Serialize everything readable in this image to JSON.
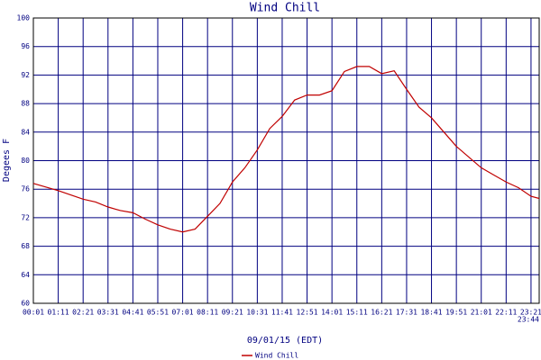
{
  "chart_data": {
    "type": "line",
    "title": "Wind Chill",
    "ylabel": "Degees F",
    "xlabel": "09/01/15 (EDT)",
    "x": [
      "00:01",
      "00:36",
      "01:11",
      "01:46",
      "02:21",
      "02:56",
      "03:31",
      "04:06",
      "04:41",
      "05:16",
      "05:51",
      "06:26",
      "07:01",
      "07:36",
      "08:11",
      "08:46",
      "09:21",
      "09:56",
      "10:31",
      "11:06",
      "11:41",
      "12:16",
      "12:51",
      "13:26",
      "14:01",
      "14:36",
      "15:11",
      "15:46",
      "16:21",
      "16:56",
      "17:31",
      "18:06",
      "18:41",
      "19:16",
      "19:51",
      "20:26",
      "21:01",
      "21:36",
      "22:11",
      "22:46",
      "23:21",
      "23:44"
    ],
    "series": [
      {
        "name": "Wind Chill",
        "color": "#c00000",
        "values": [
          76.8,
          76.3,
          75.8,
          75.2,
          74.6,
          74.2,
          73.5,
          73.0,
          72.7,
          71.8,
          71.0,
          70.4,
          70.0,
          70.4,
          72.2,
          74.0,
          77.0,
          79.0,
          81.5,
          84.5,
          86.2,
          88.5,
          89.2,
          89.2,
          89.8,
          92.5,
          93.2,
          93.2,
          92.2,
          92.6,
          90.0,
          87.5,
          86.0,
          84.0,
          82.0,
          80.5,
          79.0,
          78.0,
          77.0,
          76.2,
          75.0,
          74.7
        ]
      }
    ],
    "xlim": [
      "00:01",
      "23:44"
    ],
    "xticks": [
      "00:01",
      "01:11",
      "02:21",
      "03:31",
      "04:41",
      "05:51",
      "07:01",
      "08:11",
      "09:21",
      "10:31",
      "11:41",
      "12:51",
      "14:01",
      "15:11",
      "16:21",
      "17:31",
      "18:41",
      "19:51",
      "21:01",
      "22:11",
      "23:21",
      "23:44"
    ],
    "ylim": [
      60,
      100
    ],
    "yticks": [
      60,
      64,
      68,
      72,
      76,
      80,
      84,
      88,
      92,
      96,
      100
    ],
    "grid": true,
    "grid_color": "#000080"
  }
}
